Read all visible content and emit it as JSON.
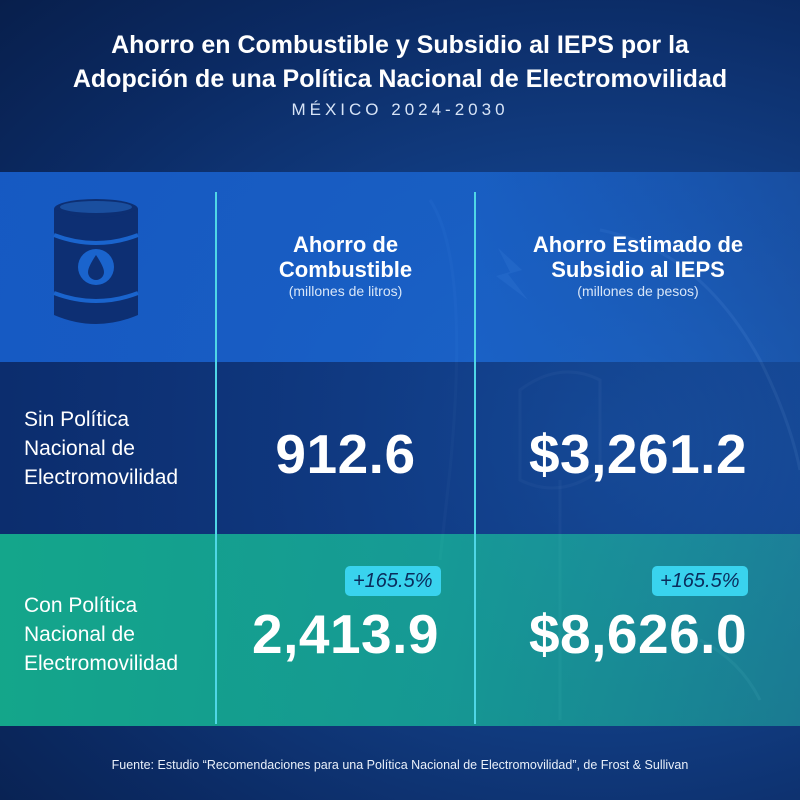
{
  "header": {
    "title_line1": "Ahorro en Combustible y Subsidio al IEPS por la",
    "title_line2": "Adopción de una Política Nacional de Electromovilidad",
    "subtitle": "MÉXICO 2024-2030"
  },
  "icons": {
    "barrel": "oil-barrel-icon",
    "background": "ev-charging-plug-icon"
  },
  "columns": {
    "fuel": {
      "heading_line1": "Ahorro de",
      "heading_line2": "Combustible",
      "unit": "(millones de litros)"
    },
    "subsidy": {
      "heading_line1": "Ahorro Estimado de",
      "heading_line2": "Subsidio al IEPS",
      "unit": "(millones de pesos)"
    }
  },
  "rows": [
    {
      "label_line1": "Sin Política",
      "label_line2": "Nacional de",
      "label_line3": "Electromovilidad",
      "fuel": "912.6",
      "subsidy": "$3,261.2"
    },
    {
      "label_line1": "Con Política",
      "label_line2": "Nacional de",
      "label_line3": "Electromovilidad",
      "fuel": "2,413.9",
      "subsidy": "$8,626.0",
      "fuel_change": "+165.5%",
      "subsidy_change": "+165.5%"
    }
  ],
  "footer": "Fuente: Estudio “Recomendaciones para una Política Nacional de Electromovilidad”, de Frost & Sullivan",
  "colors": {
    "background": "#0b2a63",
    "header_band": "#1a64cd",
    "highlight_band": "#16aa8c",
    "divider": "#4fd6e6",
    "badge": "#39d3ee"
  }
}
